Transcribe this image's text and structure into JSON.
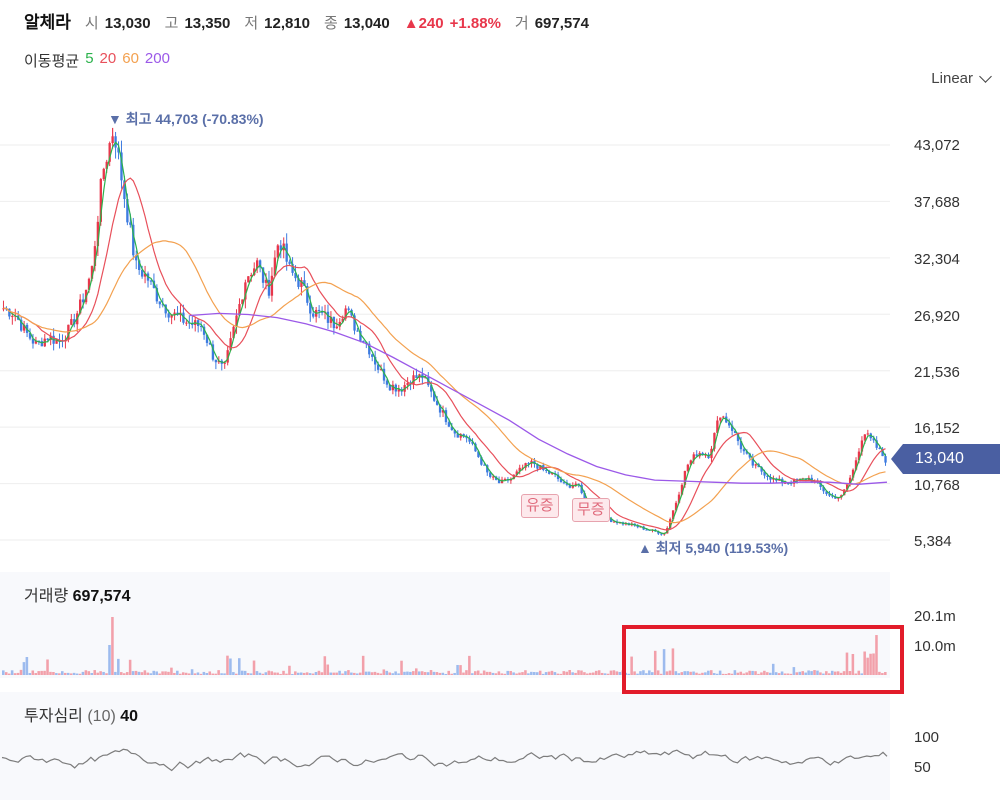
{
  "header": {
    "name": "알체라",
    "open_label": "시",
    "open": "13,030",
    "high_label": "고",
    "high": "13,350",
    "low_label": "저",
    "low": "12,810",
    "close_label": "종",
    "close": "13,040",
    "change": "▲240",
    "change_pct": "+1.88%",
    "volume_label": "거",
    "volume": "697,574"
  },
  "ma_legend": {
    "label": "이동평균",
    "periods": [
      {
        "value": "5",
        "color": "#2bb24c"
      },
      {
        "value": "20",
        "color": "#e8505b"
      },
      {
        "value": "60",
        "color": "#f3a150"
      },
      {
        "value": "200",
        "color": "#9b59e8"
      }
    ]
  },
  "scale_select": {
    "selected": "Linear"
  },
  "price_axis": {
    "ticks": [
      "43,072",
      "37,688",
      "32,304",
      "26,920",
      "21,536",
      "16,152",
      "10,768",
      "5,384"
    ]
  },
  "current_price": "13,040",
  "annotations": {
    "high": "▼ 최고 44,703 (-70.83%)",
    "low": "▲ 최저 5,940 (119.53%)"
  },
  "badges": {
    "paid_in": "유증",
    "free": "무증"
  },
  "volume_panel": {
    "label": "거래량",
    "value": "697,574",
    "ticks": [
      "20.1m",
      "10.0m"
    ]
  },
  "sentiment_panel": {
    "label": "투자심리",
    "period": "(10)",
    "value": "40",
    "ticks": [
      "100",
      "50"
    ]
  },
  "chart_data": {
    "type": "candlestick",
    "price_range": [
      5384,
      43072
    ],
    "highest": {
      "value": 44703,
      "pct": "-70.83%"
    },
    "lowest": {
      "value": 5940,
      "pct": "119.53%"
    },
    "close_path": [
      27500,
      27000,
      25200,
      24000,
      24800,
      24300,
      25500,
      27800,
      31000,
      40500,
      44703,
      38000,
      31500,
      30500,
      28500,
      27200,
      26500,
      26000,
      25800,
      23000,
      21500,
      26000,
      30500,
      31800,
      29000,
      34200,
      31000,
      29800,
      27200,
      26800,
      26000,
      27500,
      25500,
      24000,
      21800,
      20200,
      19800,
      20800,
      21000,
      19000,
      17200,
      15600,
      15200,
      13500,
      11500,
      10800,
      11200,
      12200,
      12800,
      12000,
      11500,
      10500,
      10800,
      8500,
      8000,
      7300,
      7000,
      6800,
      6500,
      6200,
      6000,
      9000,
      12500,
      13800,
      13500,
      17500,
      16200,
      14000,
      12500,
      11800,
      11000,
      10900,
      11000,
      11300,
      10500,
      9500,
      9500,
      11800,
      15700,
      14500,
      13040
    ],
    "ma_200_path": [
      26800,
      27000,
      26900,
      26600,
      26000,
      25200,
      24200,
      22800,
      21300,
      19800,
      18300,
      16800,
      15000,
      13600,
      12400,
      11600,
      11100,
      11000,
      10900,
      10800,
      10800,
      10900,
      10900,
      10700,
      10900
    ],
    "volume_axis_ticks": [
      "20.1m",
      "10.0m"
    ],
    "sentiment_range": [
      0,
      100
    ]
  }
}
